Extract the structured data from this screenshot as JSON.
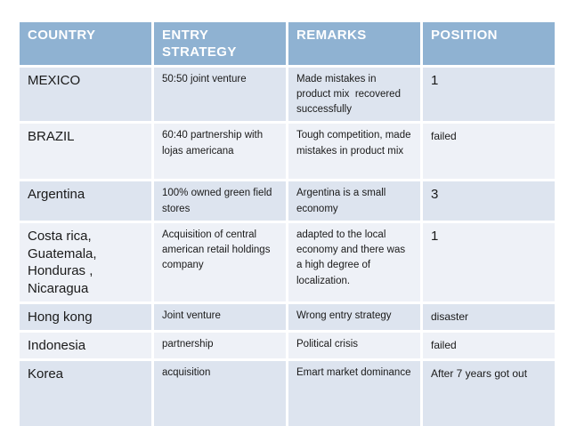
{
  "table": {
    "columns": [
      {
        "label": "COUNTRY"
      },
      {
        "label": "ENTRY STRATEGY"
      },
      {
        "label": "REMARKS"
      },
      {
        "label": "POSITION"
      }
    ],
    "rows": [
      {
        "country": "MEXICO",
        "entry_strategy": "50:50 joint venture",
        "remarks": "Made mistakes in product mix  recovered successfully",
        "position": "1"
      },
      {
        "country": "BRAZIL",
        "entry_strategy": "60:40 partnership with lojas americana",
        "remarks": "Tough competition, made mistakes in product mix",
        "position": "failed"
      },
      {
        "country": "Argentina",
        "entry_strategy": "100% owned green field stores",
        "remarks": "Argentina is a small economy",
        "position": "3"
      },
      {
        "country": "Costa rica, Guatemala, Honduras , Nicaragua",
        "entry_strategy": "Acquisition of central american retail holdings company",
        "remarks": "adapted to the local economy and there was a high degree of localization.",
        "position": "1"
      },
      {
        "country": "Hong kong",
        "entry_strategy": "Joint venture",
        "remarks": "Wrong entry strategy",
        "position": "disaster"
      },
      {
        "country": "Indonesia",
        "entry_strategy": "partnership",
        "remarks": "Political crisis",
        "position": "failed"
      },
      {
        "country": "Korea",
        "entry_strategy": "acquisition",
        "remarks": "Emart market dominance",
        "position": "After 7 years got out"
      }
    ],
    "colors": {
      "header_bg": "#8fb2d2",
      "row_band_dark": "#dde4ef",
      "row_band_light": "#eef1f7",
      "header_text": "#ffffff",
      "body_text": "#1a1a1a",
      "background": "#ffffff"
    }
  }
}
